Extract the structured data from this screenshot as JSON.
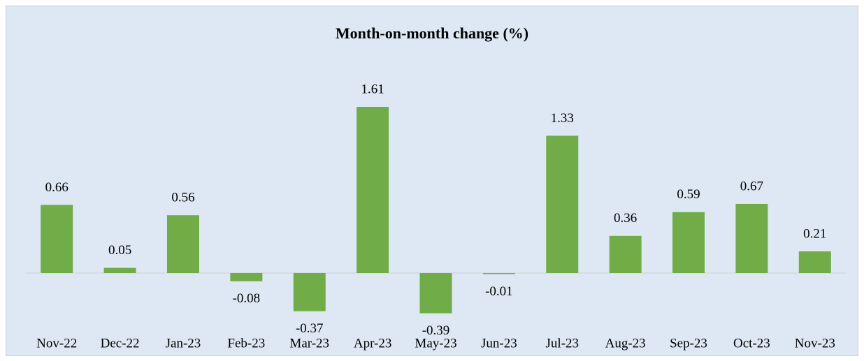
{
  "chart_data": {
    "type": "bar",
    "title": "Month-on-month change (%)",
    "categories": [
      "Nov-22",
      "Dec-22",
      "Jan-23",
      "Feb-23",
      "Mar-23",
      "Apr-23",
      "May-23",
      "Jun-23",
      "Jul-23",
      "Aug-23",
      "Sep-23",
      "Oct-23",
      "Nov-23"
    ],
    "values": [
      0.66,
      0.05,
      0.56,
      -0.08,
      -0.37,
      1.61,
      -0.39,
      -0.01,
      1.33,
      0.36,
      0.59,
      0.67,
      0.21
    ],
    "color": "#70ad47",
    "background": "#dde8f4"
  }
}
